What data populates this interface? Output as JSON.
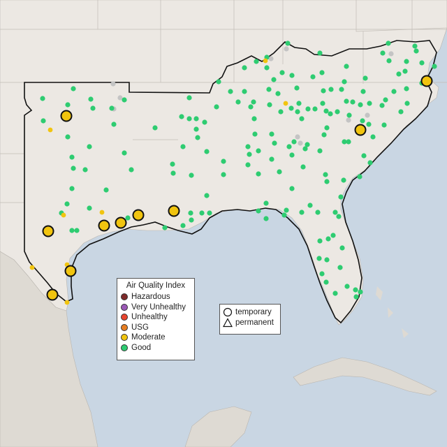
{
  "map": {
    "colors": {
      "ocean": "#c9d6e3",
      "land": "#ece8e3",
      "land_south": "#dedad3",
      "border": "#111111"
    }
  },
  "legend_aqi": {
    "title": "Air Quality Index",
    "items": [
      {
        "label": "Hazardous",
        "color": "#7e2a2a"
      },
      {
        "label": "Very Unhealthy",
        "color": "#9b59b6"
      },
      {
        "label": "Unhealthy",
        "color": "#e8452e"
      },
      {
        "label": "USG",
        "color": "#e67e22"
      },
      {
        "label": "Moderate",
        "color": "#f1c40f"
      },
      {
        "label": "Good",
        "color": "#2ecc71"
      }
    ]
  },
  "legend_shape": {
    "items": [
      {
        "label": "temporary",
        "icon": "circle-icon"
      },
      {
        "label": "permanent",
        "icon": "triangle-icon"
      }
    ]
  },
  "stations": {
    "colors": {
      "good": "#2ecc71",
      "moderate": "#f1c40f",
      "nodata": "#c4c4c4"
    }
  }
}
